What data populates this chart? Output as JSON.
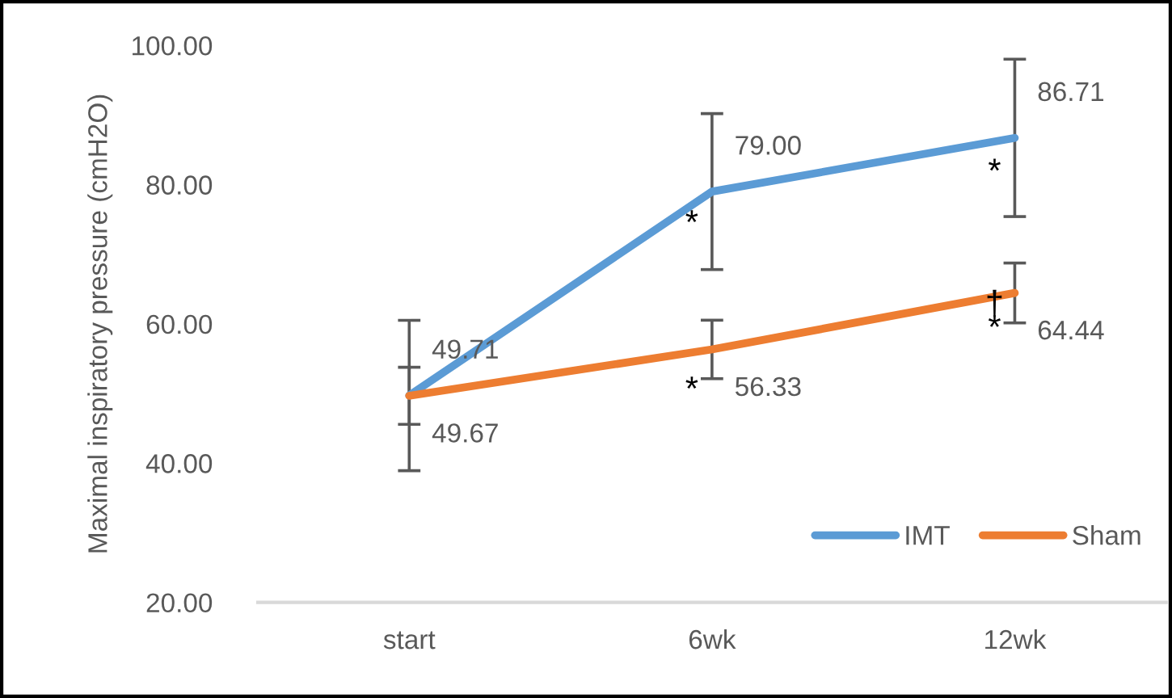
{
  "chart_data": {
    "type": "line",
    "ylabel": "Maximal inspiratory pressure (cmH2O)",
    "categories": [
      "start",
      "6wk",
      "12wk"
    ],
    "series": [
      {
        "name": "IMT",
        "color": "#5b9bd5",
        "values": [
          49.71,
          79.0,
          86.71
        ],
        "value_labels": [
          "49.71",
          "79.00",
          "86.71"
        ],
        "errors": [
          10.8,
          11.2,
          11.3
        ]
      },
      {
        "name": "Sham",
        "color": "#ed7d31",
        "values": [
          49.67,
          56.33,
          64.44
        ],
        "value_labels": [
          "49.67",
          "56.33",
          "64.44"
        ],
        "errors": [
          4.1,
          4.2,
          4.3
        ]
      }
    ],
    "ylim": [
      20,
      100
    ],
    "yticks": [
      {
        "value": 20,
        "label": "20.00"
      },
      {
        "value": 40,
        "label": "40.00"
      },
      {
        "value": 60,
        "label": "60.00"
      },
      {
        "value": 80,
        "label": "80.00"
      },
      {
        "value": 100,
        "label": "100.00"
      }
    ],
    "grid": false,
    "legend": "bottom right",
    "marker": "none",
    "line_style": "solid",
    "annotations": [
      {
        "text": "*",
        "x": "6wk",
        "y": 75.2
      },
      {
        "text": "*",
        "x": "12wk",
        "y": 82.6
      },
      {
        "text": "*",
        "x": "6wk",
        "y": 51.3
      },
      {
        "text": "†",
        "x": "12wk",
        "y": 63.6
      },
      {
        "text": "*",
        "x": "12wk",
        "y": 60.14
      }
    ]
  }
}
